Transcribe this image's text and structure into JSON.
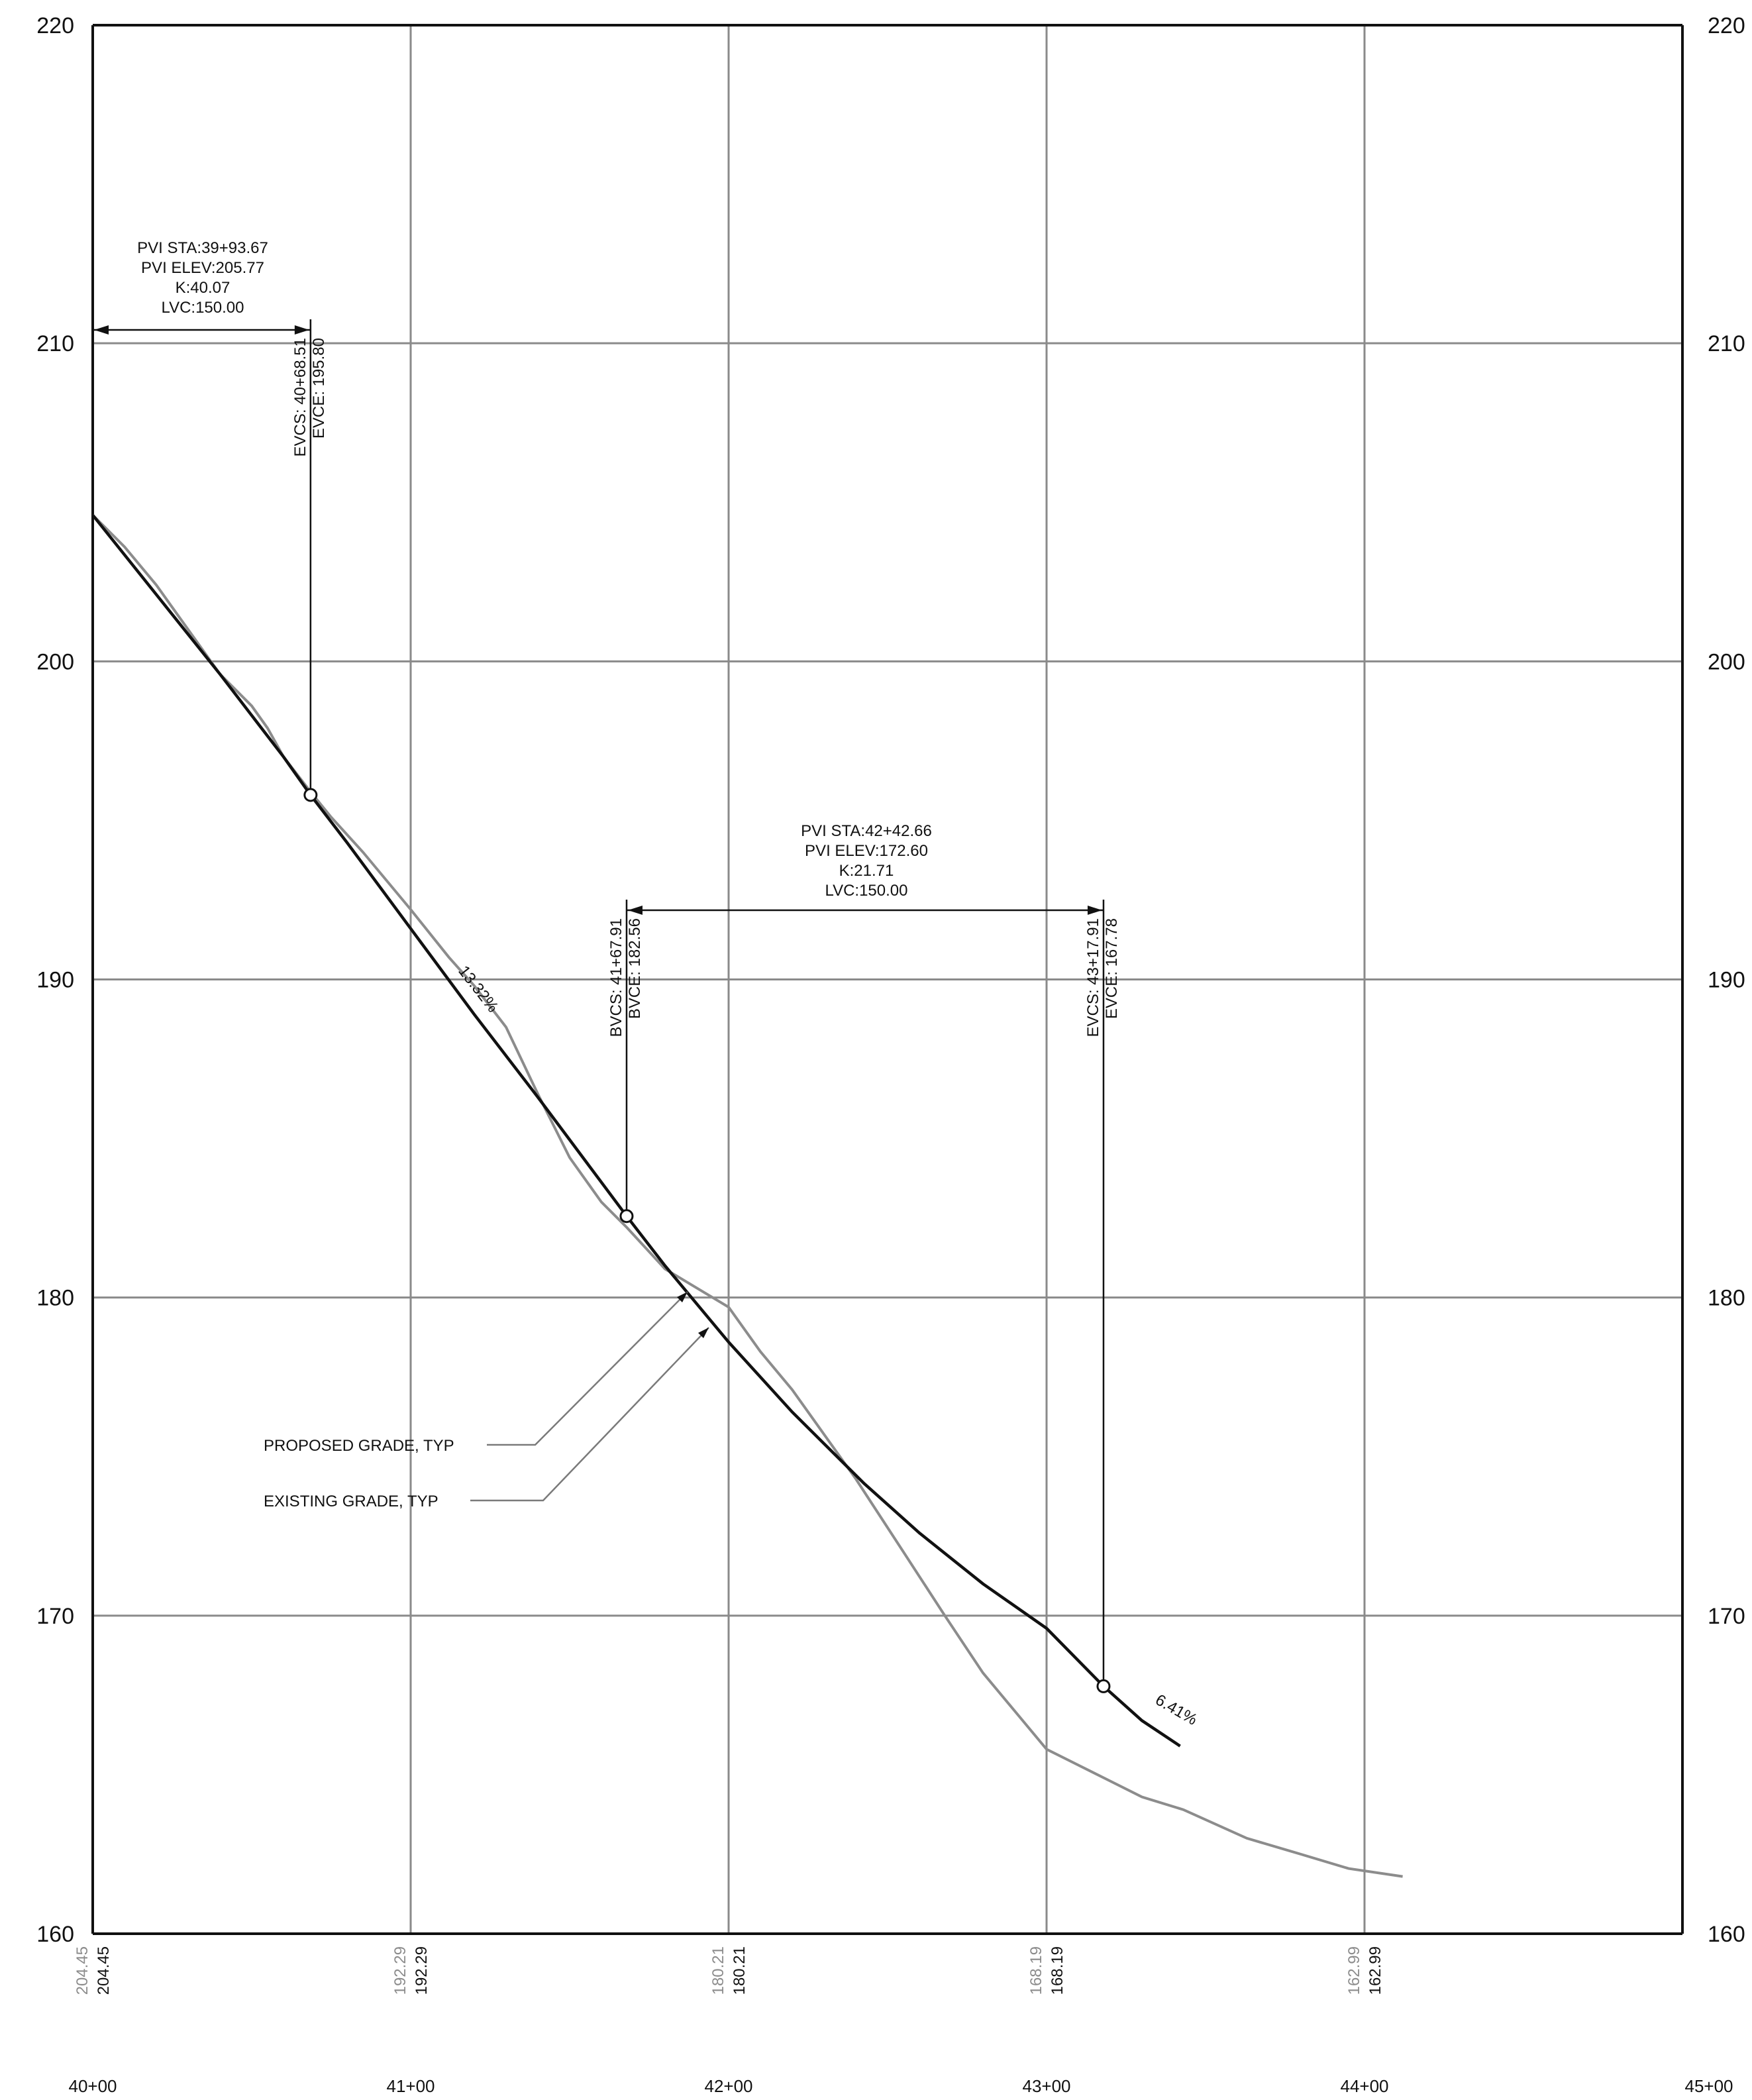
{
  "chart_data": {
    "type": "line",
    "title": "",
    "xlabel": "",
    "ylabel": "",
    "x_ticks": [
      "40+00",
      "41+00",
      "42+00",
      "43+00",
      "44+00",
      "45+00"
    ],
    "y_ticks": [
      "160",
      "170",
      "180",
      "190",
      "200",
      "210",
      "220"
    ],
    "xlim": [
      4000,
      4500
    ],
    "ylim": [
      160,
      220
    ],
    "grid": true,
    "series": [
      {
        "key": "existing",
        "color": "#8c8c8c",
        "points": [
          [
            4000,
            204.6
          ],
          [
            4010,
            203.6
          ],
          [
            4020,
            202.4
          ],
          [
            4030,
            201.0
          ],
          [
            4040,
            199.6
          ],
          [
            4050,
            198.6
          ],
          [
            4055,
            197.9
          ],
          [
            4060,
            197.0
          ],
          [
            4068.5,
            195.9
          ],
          [
            4075,
            195.1
          ],
          [
            4085,
            194.0
          ],
          [
            4100,
            192.2
          ],
          [
            4112,
            190.7
          ],
          [
            4120,
            189.8
          ],
          [
            4130,
            188.5
          ],
          [
            4140,
            186.4
          ],
          [
            4150,
            184.4
          ],
          [
            4160,
            183.0
          ],
          [
            4168,
            182.2
          ],
          [
            4180,
            180.9
          ],
          [
            4190,
            180.3
          ],
          [
            4200,
            179.7
          ],
          [
            4210,
            178.3
          ],
          [
            4220,
            177.1
          ],
          [
            4230,
            175.7
          ],
          [
            4240,
            174.3
          ],
          [
            4255,
            172.0
          ],
          [
            4268,
            170.0
          ],
          [
            4280,
            168.2
          ],
          [
            4290,
            167.0
          ],
          [
            4300,
            165.8
          ],
          [
            4310,
            165.3
          ],
          [
            4320,
            164.8
          ],
          [
            4330,
            164.3
          ],
          [
            4343,
            163.9
          ],
          [
            4363,
            163.0
          ],
          [
            4380,
            162.5
          ],
          [
            4395,
            162.05
          ],
          [
            4412,
            161.8
          ]
        ]
      },
      {
        "key": "proposed",
        "color": "#111111",
        "points": [
          [
            4000,
            204.6
          ],
          [
            4020,
            202.1
          ],
          [
            4040,
            199.6
          ],
          [
            4060,
            197.0
          ],
          [
            4068.51,
            195.8
          ],
          [
            4080,
            194.3
          ],
          [
            4100,
            191.6
          ],
          [
            4120,
            188.9
          ],
          [
            4140,
            186.3
          ],
          [
            4167.91,
            182.56
          ],
          [
            4180,
            181.0
          ],
          [
            4200,
            178.6
          ],
          [
            4220,
            176.4
          ],
          [
            4242.66,
            174.15
          ],
          [
            4260,
            172.6
          ],
          [
            4280,
            171.0
          ],
          [
            4300,
            169.6
          ],
          [
            4317.91,
            167.78
          ],
          [
            4330,
            166.7
          ],
          [
            4342,
            165.9
          ]
        ]
      }
    ],
    "elevations": [
      {
        "station": 4000,
        "existing": "204.45",
        "proposed": "204.45"
      },
      {
        "station": 4100,
        "existing": "192.29",
        "proposed": "192.29"
      },
      {
        "station": 4200,
        "existing": "180.21",
        "proposed": "180.21"
      },
      {
        "station": 4300,
        "existing": "168.19",
        "proposed": "168.19"
      },
      {
        "station": 4400,
        "existing": "162.99",
        "proposed": "162.99"
      }
    ],
    "curve1": {
      "lines": [
        "PVI STA:39+93.67",
        "PVI ELEV:205.77",
        "K:40.07",
        "LVC:150.00"
      ],
      "evcs_label": "EVCS: 40+68.51",
      "evce_label": "EVCE: 195.80",
      "evc_station": 4068.51,
      "evc_elev": 195.8
    },
    "curve2": {
      "lines": [
        "PVI STA:42+42.66",
        "PVI ELEV:172.60",
        "K:21.71",
        "LVC:150.00"
      ],
      "bvcs_label": "BVCS: 41+67.91",
      "bvce_label": "BVCE: 182.56",
      "bvc_station": 4167.91,
      "bvc_elev": 182.56,
      "evcs_label": "EVCS: 43+17.91",
      "evce_label": "EVCE: 167.78",
      "evc_station": 4317.91,
      "evc_elev": 167.78
    },
    "grade_labels": [
      {
        "text": "13.32%",
        "station": 4120,
        "elev": 189.6
      },
      {
        "text": "6.41%",
        "station": 4340,
        "elev": 166.9
      }
    ],
    "notes": {
      "proposed": "PROPOSED GRADE, TYP",
      "existing": "EXISTING GRADE, TYP"
    }
  }
}
